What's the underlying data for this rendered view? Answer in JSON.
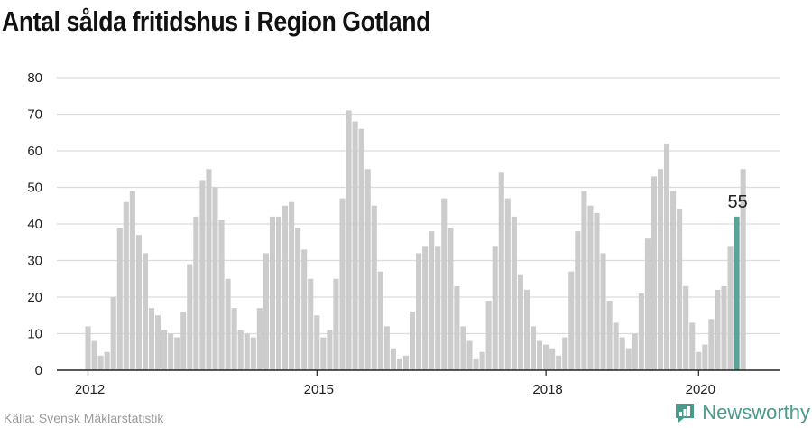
{
  "title": "Antal sålda fritidshus i Region Gotland",
  "source": "Källa: Svensk Mäklarstatistik",
  "brand": {
    "name": "Newsworthy",
    "icon": "newsworthy-logo-icon"
  },
  "colors": {
    "bar": "#cccccc",
    "highlight": "#5aa396",
    "grid": "#dcdcdc",
    "axis": "#222222",
    "text": "#222222"
  },
  "chart_data": {
    "type": "bar",
    "title": "Antal sålda fritidshus i Region Gotland",
    "xlabel": "",
    "ylabel": "",
    "ylim": [
      0,
      80
    ],
    "yticks": [
      "0",
      "10",
      "20",
      "30",
      "40",
      "50",
      "60",
      "70",
      "80"
    ],
    "xticks": [
      {
        "label": "2012",
        "index": 0
      },
      {
        "label": "2015",
        "index": 36
      },
      {
        "label": "2018",
        "index": 72
      },
      {
        "label": "2020",
        "index": 96
      }
    ],
    "grid": true,
    "highlight_label": "55",
    "highlight_index": 102,
    "values": [
      12,
      8,
      4,
      5,
      20,
      39,
      46,
      49,
      37,
      32,
      17,
      15,
      11,
      10,
      9,
      16,
      29,
      42,
      52,
      55,
      50,
      41,
      25,
      17,
      11,
      10,
      9,
      17,
      32,
      42,
      42,
      45,
      46,
      39,
      33,
      25,
      15,
      9,
      11,
      25,
      47,
      71,
      68,
      66,
      55,
      45,
      27,
      12,
      6,
      3,
      4,
      16,
      32,
      34,
      38,
      34,
      47,
      39,
      23,
      12,
      8,
      3,
      5,
      19,
      34,
      54,
      47,
      42,
      26,
      22,
      12,
      8,
      7,
      6,
      4,
      9,
      27,
      38,
      49,
      45,
      43,
      32,
      19,
      13,
      9,
      6,
      10,
      21,
      36,
      53,
      55,
      62,
      49,
      44,
      23,
      13,
      5,
      7,
      14,
      22,
      23,
      34,
      42,
      55
    ]
  }
}
